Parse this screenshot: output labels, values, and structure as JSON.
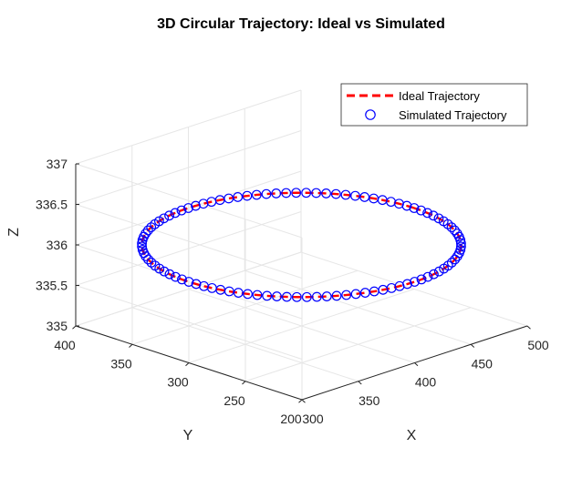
{
  "chart_data": {
    "type": "scatter",
    "title": "3D Circular Trajectory: Ideal vs Simulated",
    "xlabel": "X",
    "ylabel": "Y",
    "zlabel": "Z",
    "xlim": [
      300,
      500
    ],
    "ylim": [
      200,
      400
    ],
    "zlim": [
      335,
      337
    ],
    "xticks": [
      300,
      350,
      400,
      450,
      500
    ],
    "yticks": [
      200,
      250,
      300,
      350,
      400
    ],
    "zticks": [
      335,
      335.5,
      336,
      336.5,
      337
    ],
    "grid": true,
    "legend_position": "top-right",
    "circle": {
      "center_x": 400,
      "center_y": 300,
      "radius": 100,
      "z": 336
    },
    "series": [
      {
        "name": "Ideal Trajectory",
        "style": "dashed-line",
        "color": "#ff0000"
      },
      {
        "name": "Simulated Trajectory",
        "style": "open-circle-markers",
        "color": "#0000ff",
        "points": 100
      }
    ]
  }
}
